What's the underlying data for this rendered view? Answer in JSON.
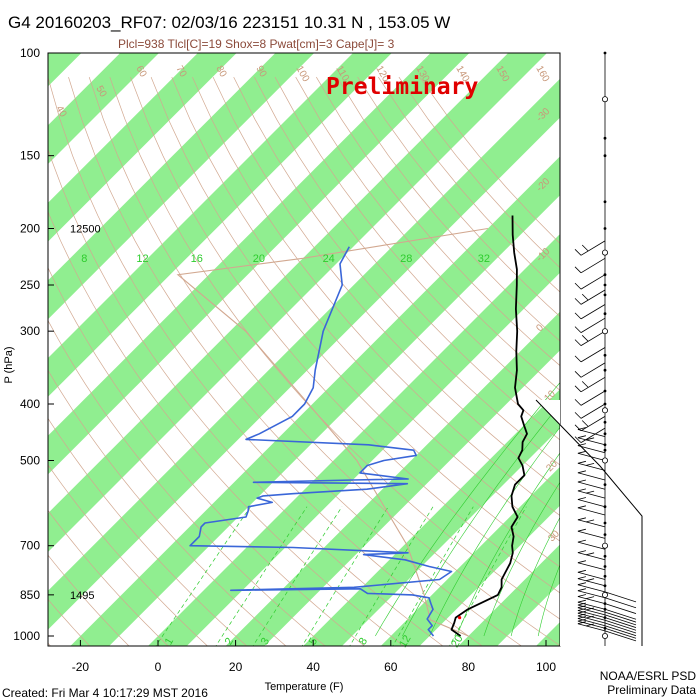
{
  "header": {
    "title": "G4 20160203_RF07: 02/03/16 223151  10.31 N , 153.05 W",
    "subtitle": "Plcl=938 Tlcl[C]=19 Shox=8 Pwat[cm]=3 Cape[J]= 3",
    "watermark": "Preliminary"
  },
  "footer": {
    "created": "Created: Fri Mar  4 10:17:29 MST 2016",
    "credit_line1": "NOAA/ESRL PSD",
    "credit_line2": "Preliminary Data"
  },
  "colors": {
    "temperature": "#000000",
    "dewpoint": "#3a66d8",
    "isotherm_band": "#90ee90",
    "dry_adiabat": "#d2a890",
    "mixing_ratio": "#2ecc2e",
    "watermark": "#e00000"
  },
  "chart_data": {
    "type": "line",
    "chart_kind": "skew-T log-P sounding",
    "xlabel": "Temperature (F)",
    "ylabel": "P (hPa)",
    "xlim": [
      -30,
      115
    ],
    "ylim": [
      1020,
      100
    ],
    "y_scale": "log",
    "x_ticks": [
      -20,
      0,
      20,
      40,
      60,
      80,
      100
    ],
    "y_ticks": [
      100,
      150,
      200,
      250,
      300,
      400,
      500,
      700,
      850,
      1000
    ],
    "height_labels": [
      {
        "p": 200,
        "text": "12500"
      },
      {
        "p": 850,
        "text": "1495"
      }
    ],
    "mixing_ratio_labels": [
      {
        "value": "8",
        "x_f": -19
      },
      {
        "value": "12",
        "x_f": -4
      },
      {
        "value": "16",
        "x_f": 10
      },
      {
        "value": "20",
        "x_f": 26
      },
      {
        "value": "24",
        "x_f": 44
      },
      {
        "value": "28",
        "x_f": 64
      },
      {
        "value": "32",
        "x_f": 84
      }
    ],
    "bottom_mixing_labels": [
      "1",
      "2",
      "3",
      "5",
      "8",
      "12",
      "20"
    ],
    "theta_labels": [
      "40",
      "50",
      "60",
      "70",
      "80",
      "90",
      "100",
      "110",
      "120",
      "130",
      "140",
      "150",
      "160"
    ],
    "isotherm_labels": [
      "-30",
      "-20",
      "-10",
      "0",
      "10",
      "20",
      "30"
    ],
    "temperature_F": [
      {
        "p": 1000,
        "t": 78
      },
      {
        "p": 975,
        "t": 74
      },
      {
        "p": 950,
        "t": 73
      },
      {
        "p": 930,
        "t": 72
      },
      {
        "p": 900,
        "t": 73
      },
      {
        "p": 875,
        "t": 75
      },
      {
        "p": 850,
        "t": 77
      },
      {
        "p": 825,
        "t": 76
      },
      {
        "p": 800,
        "t": 74
      },
      {
        "p": 775,
        "t": 73
      },
      {
        "p": 750,
        "t": 72
      },
      {
        "p": 720,
        "t": 70
      },
      {
        "p": 700,
        "t": 68
      },
      {
        "p": 675,
        "t": 66
      },
      {
        "p": 650,
        "t": 63
      },
      {
        "p": 625,
        "t": 62
      },
      {
        "p": 600,
        "t": 58
      },
      {
        "p": 575,
        "t": 55
      },
      {
        "p": 550,
        "t": 53
      },
      {
        "p": 530,
        "t": 53
      },
      {
        "p": 510,
        "t": 50
      },
      {
        "p": 495,
        "t": 47
      },
      {
        "p": 480,
        "t": 46
      },
      {
        "p": 465,
        "t": 44
      },
      {
        "p": 450,
        "t": 43
      },
      {
        "p": 435,
        "t": 40
      },
      {
        "p": 420,
        "t": 37
      },
      {
        "p": 410,
        "t": 36
      },
      {
        "p": 400,
        "t": 33
      },
      {
        "p": 375,
        "t": 28
      },
      {
        "p": 350,
        "t": 24
      },
      {
        "p": 325,
        "t": 19
      },
      {
        "p": 300,
        "t": 14
      },
      {
        "p": 275,
        "t": 8
      },
      {
        "p": 250,
        "t": 2
      },
      {
        "p": 235,
        "t": -2
      },
      {
        "p": 220,
        "t": -7
      },
      {
        "p": 205,
        "t": -12
      },
      {
        "p": 190,
        "t": -17
      }
    ],
    "dewpoint_F": [
      {
        "p": 1000,
        "t": 71
      },
      {
        "p": 975,
        "t": 68
      },
      {
        "p": 960,
        "t": 68
      },
      {
        "p": 935,
        "t": 65
      },
      {
        "p": 900,
        "t": 64
      },
      {
        "p": 880,
        "t": 62
      },
      {
        "p": 860,
        "t": 60
      },
      {
        "p": 850,
        "t": 55
      },
      {
        "p": 845,
        "t": 43
      },
      {
        "p": 830,
        "t": 40
      },
      {
        "p": 835,
        "t": 7
      },
      {
        "p": 825,
        "t": 38
      },
      {
        "p": 800,
        "t": 58
      },
      {
        "p": 775,
        "t": 59
      },
      {
        "p": 760,
        "t": 52
      },
      {
        "p": 740,
        "t": 44
      },
      {
        "p": 725,
        "t": 32
      },
      {
        "p": 720,
        "t": 43
      },
      {
        "p": 705,
        "t": 12
      },
      {
        "p": 700,
        "t": -15
      },
      {
        "p": 675,
        "t": -15
      },
      {
        "p": 650,
        "t": -17
      },
      {
        "p": 640,
        "t": -17
      },
      {
        "p": 625,
        "t": -8
      },
      {
        "p": 610,
        "t": -9
      },
      {
        "p": 600,
        "t": -10
      },
      {
        "p": 590,
        "t": -5
      },
      {
        "p": 580,
        "t": -10
      },
      {
        "p": 575,
        "t": -9
      },
      {
        "p": 570,
        "t": -2
      },
      {
        "p": 560,
        "t": 16
      },
      {
        "p": 548,
        "t": 25
      },
      {
        "p": 545,
        "t": -15
      },
      {
        "p": 540,
        "t": 10
      },
      {
        "p": 538,
        "t": 24
      },
      {
        "p": 525,
        "t": 10
      },
      {
        "p": 510,
        "t": 10
      },
      {
        "p": 500,
        "t": 13
      },
      {
        "p": 490,
        "t": 20
      },
      {
        "p": 480,
        "t": 18
      },
      {
        "p": 470,
        "t": 5
      },
      {
        "p": 460,
        "t": -28
      },
      {
        "p": 450,
        "t": -26
      },
      {
        "p": 420,
        "t": -22
      },
      {
        "p": 400,
        "t": -22
      },
      {
        "p": 375,
        "t": -24
      },
      {
        "p": 350,
        "t": -28
      },
      {
        "p": 300,
        "t": -36
      },
      {
        "p": 250,
        "t": -43
      },
      {
        "p": 230,
        "t": -49
      },
      {
        "p": 215,
        "t": -51
      }
    ],
    "parcel_F": [
      {
        "p": 1000,
        "t": 80
      },
      {
        "p": 938,
        "t": 66
      },
      {
        "p": 850,
        "t": 58
      },
      {
        "p": 700,
        "t": 41
      },
      {
        "p": 500,
        "t": 6
      },
      {
        "p": 400,
        "t": -21
      },
      {
        "p": 300,
        "t": -56
      },
      {
        "p": 240,
        "t": -88
      },
      {
        "p": 225,
        "t": -60
      },
      {
        "p": 200,
        "t": -20
      }
    ],
    "wind_levels_hPa": [
      980,
      970,
      960,
      950,
      940,
      930,
      920,
      910,
      900,
      880,
      860,
      840,
      820,
      800,
      770,
      740,
      710,
      680,
      650,
      620,
      600,
      580,
      560,
      540,
      520,
      500,
      485,
      470,
      455,
      440,
      420,
      400,
      380,
      360,
      340,
      320,
      300,
      285,
      270,
      255,
      240,
      225,
      210
    ],
    "wind_station_levels_hPa": [
      1000,
      970,
      930,
      900,
      880,
      850,
      820,
      790,
      760,
      730,
      700,
      670,
      640,
      600,
      550,
      500,
      480,
      470,
      450,
      430,
      410,
      400,
      380,
      350,
      330,
      300,
      280,
      260,
      250,
      240,
      220,
      200,
      180,
      150,
      140,
      120,
      100
    ]
  }
}
